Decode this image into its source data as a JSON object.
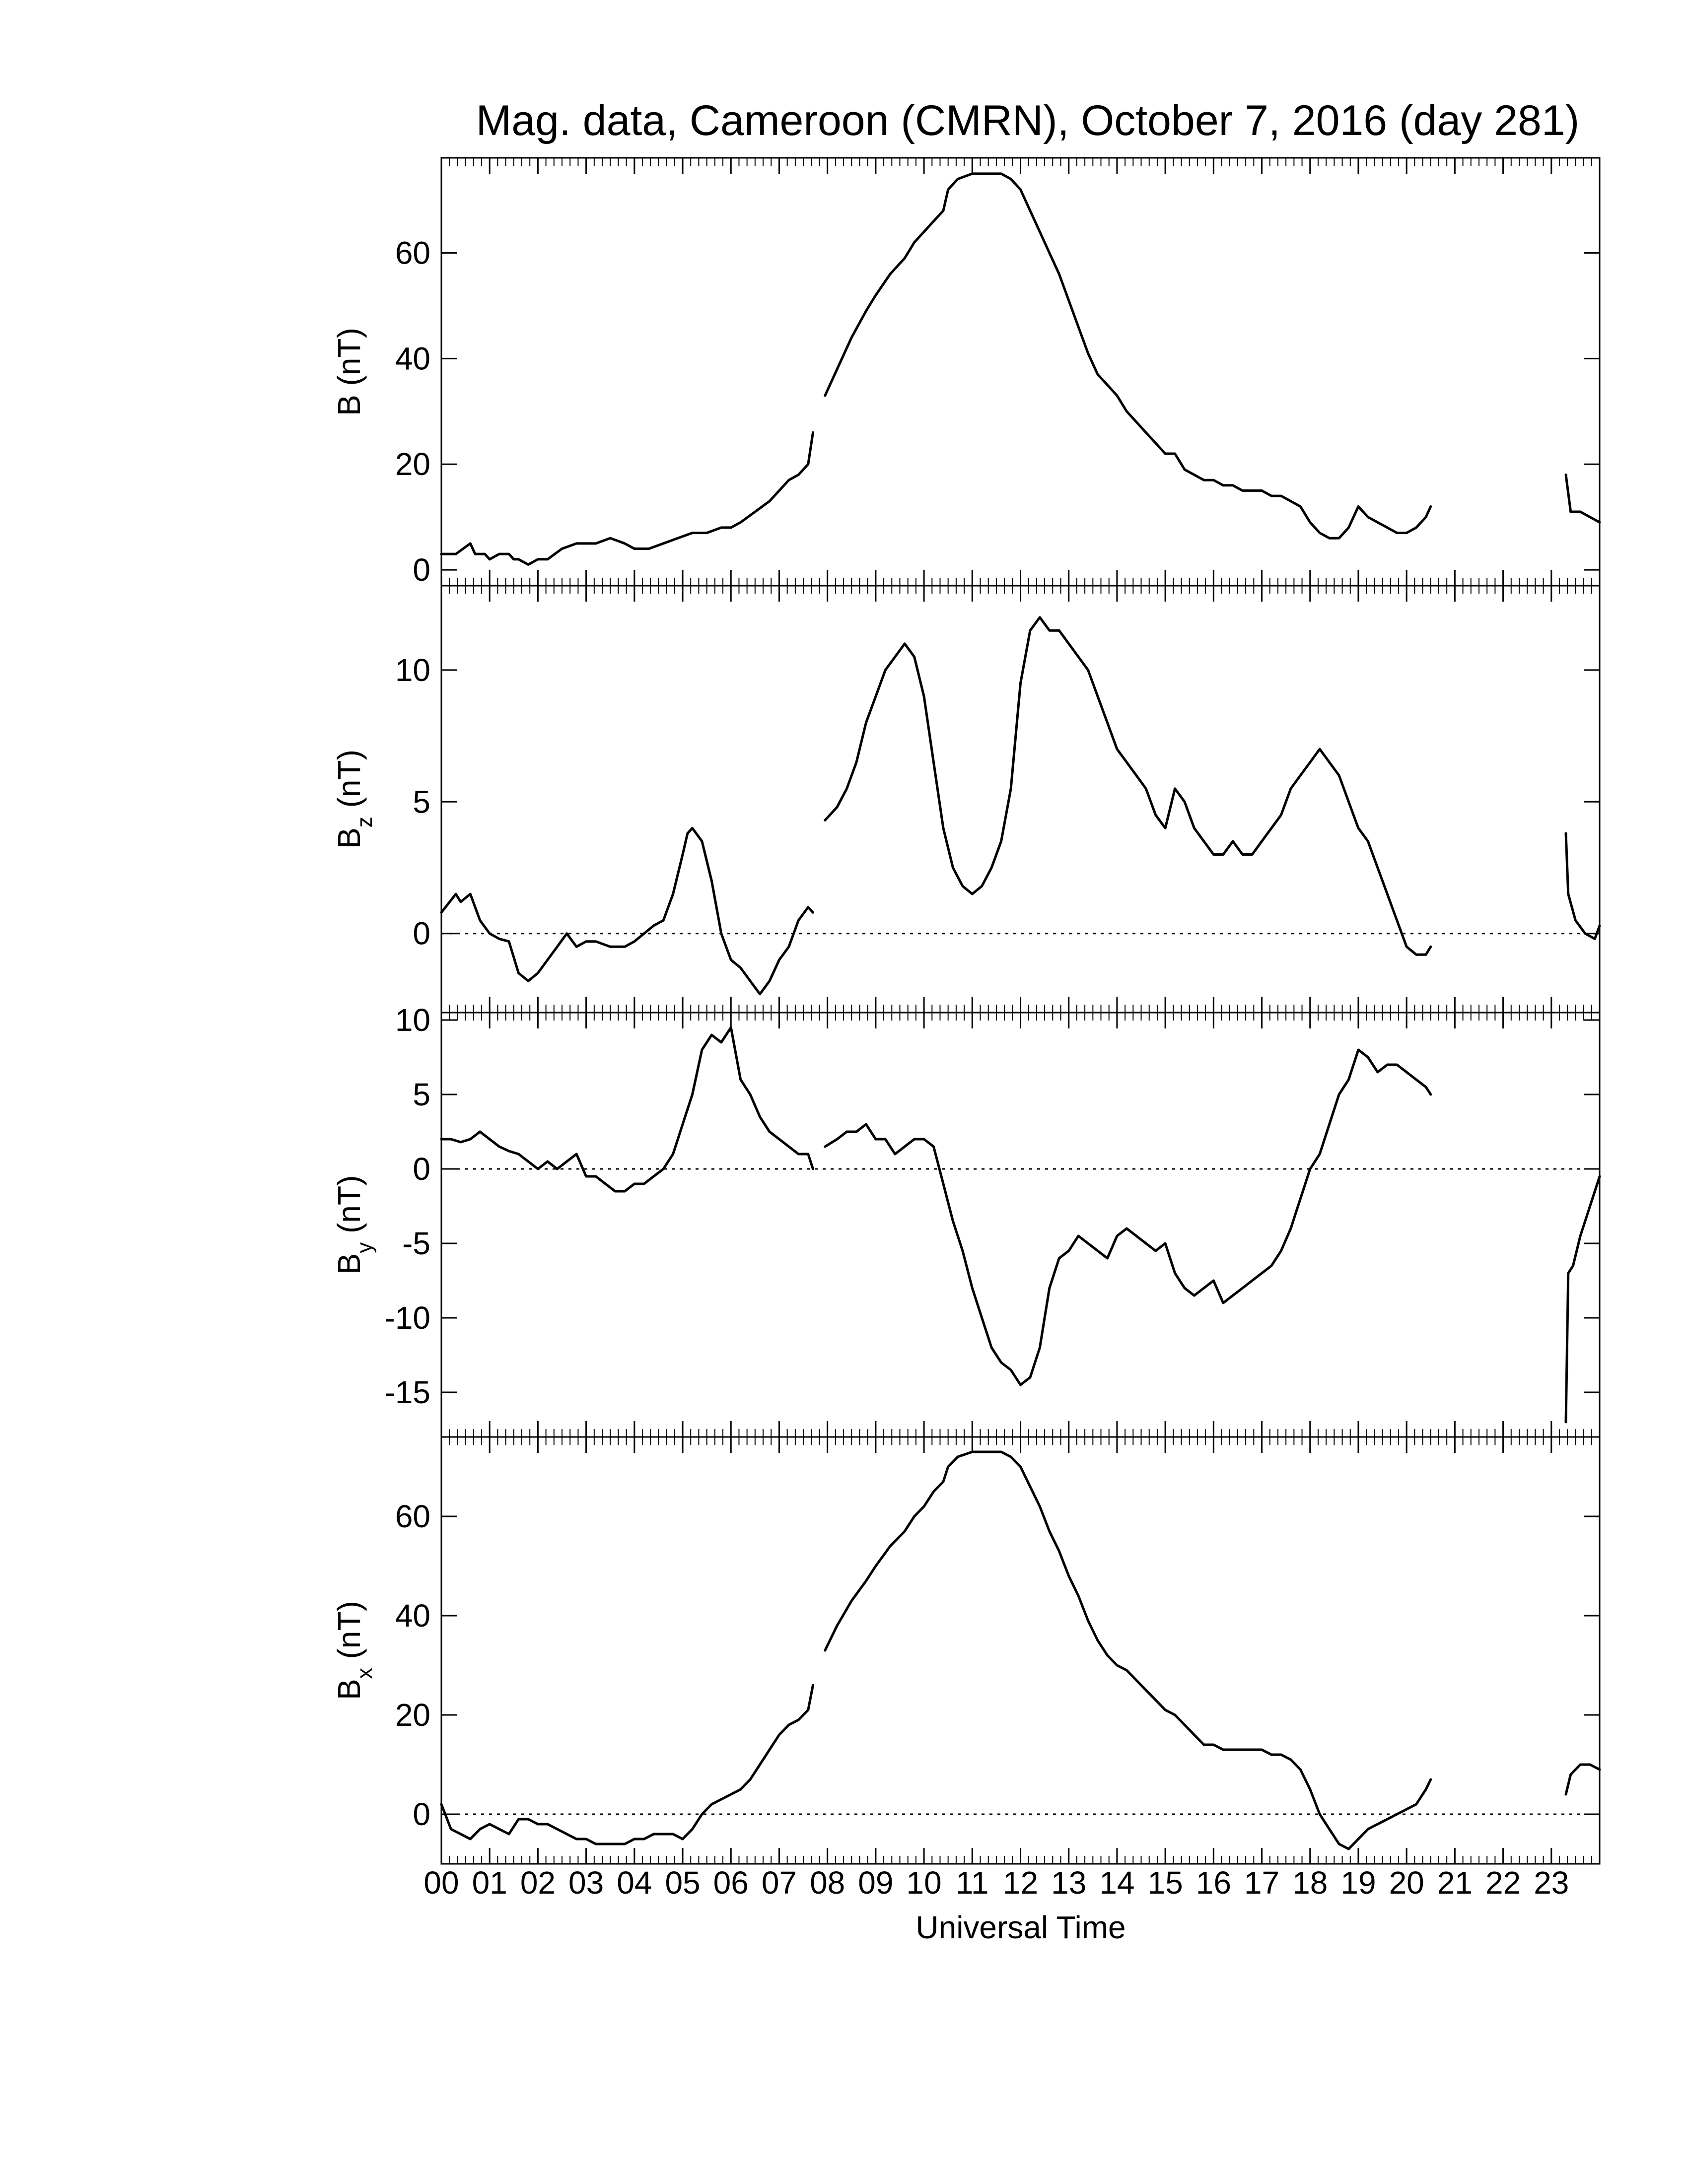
{
  "chart_data": {
    "type": "line",
    "title": "Mag. data, Cameroon (CMRN), October 7, 2016 (day 281)",
    "xlabel": "Universal Time",
    "xlim": [
      0,
      24
    ],
    "x_tick_labels": [
      "00",
      "01",
      "02",
      "03",
      "04",
      "05",
      "06",
      "07",
      "08",
      "09",
      "10",
      "11",
      "12",
      "13",
      "14",
      "15",
      "16",
      "17",
      "18",
      "19",
      "20",
      "21",
      "22",
      "23"
    ],
    "line_color": "#000000",
    "panels": [
      {
        "id": "B",
        "ylabel_main": "B",
        "ylabel_sub": "",
        "ylabel_unit": " (nT)",
        "ylim": [
          -3,
          78
        ],
        "yticks": [
          0,
          20,
          40,
          60
        ],
        "zero_line": false,
        "segments": [
          {
            "x": [
              0.0,
              0.3,
              0.6,
              0.7,
              0.9,
              1.0,
              1.2,
              1.4,
              1.5,
              1.6,
              1.8,
              2.0,
              2.2,
              2.5,
              2.8,
              3.0,
              3.2,
              3.5,
              3.8,
              4.0,
              4.3,
              4.6,
              4.9,
              5.2,
              5.5,
              5.8,
              6.0,
              6.2,
              6.5,
              6.8,
              7.0,
              7.2,
              7.4,
              7.6,
              7.7
            ],
            "y": [
              3,
              3,
              5,
              3,
              3,
              2,
              3,
              3,
              2,
              2,
              1,
              2,
              2,
              4,
              5,
              5,
              5,
              6,
              5,
              4,
              4,
              5,
              6,
              7,
              7,
              8,
              8,
              9,
              11,
              13,
              15,
              17,
              18,
              20,
              26
            ]
          },
          {
            "x": [
              7.95,
              8.2,
              8.5,
              8.8,
              9.0,
              9.3,
              9.6,
              9.8,
              10.0,
              10.2,
              10.4,
              10.5,
              10.7,
              11.0,
              11.3,
              11.6,
              11.8,
              12.0,
              12.2,
              12.4,
              12.6,
              12.8,
              13.0,
              13.2,
              13.4,
              13.6,
              13.8,
              14.0,
              14.2,
              14.4,
              14.6,
              14.8,
              15.0,
              15.2,
              15.4,
              15.6,
              15.8,
              16.0,
              16.2,
              16.4,
              16.6,
              16.8,
              17.0,
              17.2,
              17.4,
              17.6,
              17.8,
              18.0,
              18.2,
              18.4,
              18.6,
              18.8,
              19.0,
              19.2,
              19.4,
              19.6,
              19.8,
              20.0,
              20.2,
              20.4,
              20.5
            ],
            "y": [
              33,
              38,
              44,
              49,
              52,
              56,
              59,
              62,
              64,
              66,
              68,
              72,
              74,
              75,
              75,
              75,
              74,
              72,
              68,
              64,
              60,
              56,
              51,
              46,
              41,
              37,
              35,
              33,
              30,
              28,
              26,
              24,
              22,
              22,
              19,
              18,
              17,
              17,
              16,
              16,
              15,
              15,
              15,
              14,
              14,
              13,
              12,
              9,
              7,
              6,
              6,
              8,
              12,
              10,
              9,
              8,
              7,
              7,
              8,
              10,
              12
            ]
          },
          {
            "x": [
              23.3,
              23.4,
              23.6,
              23.8,
              24.0
            ],
            "y": [
              18,
              11,
              11,
              10,
              9
            ]
          }
        ]
      },
      {
        "id": "Bz",
        "ylabel_main": "B",
        "ylabel_sub": "z",
        "ylabel_unit": " (nT)",
        "ylim": [
          -3,
          13.2
        ],
        "yticks": [
          0,
          5,
          10
        ],
        "zero_line": true,
        "segments": [
          {
            "x": [
              0.0,
              0.3,
              0.4,
              0.6,
              0.8,
              1.0,
              1.2,
              1.4,
              1.6,
              1.8,
              2.0,
              2.2,
              2.4,
              2.6,
              2.8,
              3.0,
              3.2,
              3.5,
              3.8,
              4.0,
              4.2,
              4.4,
              4.6,
              4.8,
              5.0,
              5.1,
              5.2,
              5.4,
              5.6,
              5.8,
              6.0,
              6.2,
              6.4,
              6.6,
              6.8,
              7.0,
              7.2,
              7.4,
              7.6,
              7.7
            ],
            "y": [
              0.8,
              1.5,
              1.2,
              1.5,
              0.5,
              0.0,
              -0.2,
              -0.3,
              -1.5,
              -1.8,
              -1.5,
              -1.0,
              -0.5,
              0.0,
              -0.5,
              -0.3,
              -0.3,
              -0.5,
              -0.5,
              -0.3,
              0.0,
              0.3,
              0.5,
              1.5,
              3.0,
              3.8,
              4.0,
              3.5,
              2.0,
              0.0,
              -1.0,
              -1.3,
              -1.8,
              -2.3,
              -1.8,
              -1.0,
              -0.5,
              0.5,
              1.0,
              0.8
            ]
          },
          {
            "x": [
              7.95,
              8.2,
              8.4,
              8.6,
              8.8,
              9.0,
              9.2,
              9.4,
              9.6,
              9.8,
              10.0,
              10.2,
              10.4,
              10.6,
              10.8,
              11.0,
              11.2,
              11.4,
              11.6,
              11.8,
              11.9,
              12.0,
              12.2,
              12.4,
              12.6,
              12.8,
              13.0,
              13.2,
              13.4,
              13.6,
              13.8,
              14.0,
              14.2,
              14.4,
              14.6,
              14.8,
              15.0,
              15.2,
              15.4,
              15.6,
              15.8,
              16.0,
              16.2,
              16.4,
              16.6,
              16.8,
              17.0,
              17.2,
              17.4,
              17.6,
              17.8,
              18.0,
              18.2,
              18.4,
              18.6,
              18.8,
              19.0,
              19.2,
              19.4,
              19.6,
              19.8,
              20.0,
              20.2,
              20.4,
              20.5
            ],
            "y": [
              4.3,
              4.8,
              5.5,
              6.5,
              8.0,
              9.0,
              10.0,
              10.5,
              11.0,
              10.5,
              9.0,
              6.5,
              4.0,
              2.5,
              1.8,
              1.5,
              1.8,
              2.5,
              3.5,
              5.5,
              7.5,
              9.5,
              11.5,
              12.0,
              11.5,
              11.5,
              11.0,
              10.5,
              10.0,
              9.0,
              8.0,
              7.0,
              6.5,
              6.0,
              5.5,
              4.5,
              4.0,
              5.5,
              5.0,
              4.0,
              3.5,
              3.0,
              3.0,
              3.5,
              3.0,
              3.0,
              3.5,
              4.0,
              4.5,
              5.5,
              6.0,
              6.5,
              7.0,
              6.5,
              6.0,
              5.0,
              4.0,
              3.5,
              2.5,
              1.5,
              0.5,
              -0.5,
              -0.8,
              -0.8,
              -0.5
            ]
          },
          {
            "x": [
              23.3,
              23.35,
              23.5,
              23.7,
              23.9,
              24.0
            ],
            "y": [
              3.8,
              1.5,
              0.5,
              0.0,
              -0.2,
              0.3
            ]
          }
        ]
      },
      {
        "id": "By",
        "ylabel_main": "B",
        "ylabel_sub": "y",
        "ylabel_unit": " (nT)",
        "ylim": [
          -18,
          10.5
        ],
        "yticks": [
          -15,
          -10,
          -5,
          0,
          5,
          10
        ],
        "zero_line": true,
        "segments": [
          {
            "x": [
              0.0,
              0.2,
              0.4,
              0.6,
              0.8,
              1.0,
              1.2,
              1.4,
              1.6,
              1.8,
              2.0,
              2.2,
              2.4,
              2.6,
              2.8,
              3.0,
              3.2,
              3.4,
              3.6,
              3.8,
              4.0,
              4.2,
              4.4,
              4.6,
              4.8,
              5.0,
              5.2,
              5.4,
              5.6,
              5.8,
              6.0,
              6.2,
              6.4,
              6.6,
              6.8,
              7.0,
              7.2,
              7.4,
              7.6,
              7.7
            ],
            "y": [
              2.0,
              2.0,
              1.8,
              2.0,
              2.5,
              2.0,
              1.5,
              1.2,
              1.0,
              0.5,
              0.0,
              0.5,
              0.0,
              0.5,
              1.0,
              -0.5,
              -0.5,
              -1.0,
              -1.5,
              -1.5,
              -1.0,
              -1.0,
              -0.5,
              0.0,
              1.0,
              3.0,
              5.0,
              8.0,
              9.0,
              8.5,
              9.5,
              6.0,
              5.0,
              3.5,
              2.5,
              2.0,
              1.5,
              1.0,
              1.0,
              0.0
            ]
          },
          {
            "x": [
              7.95,
              8.2,
              8.4,
              8.6,
              8.8,
              9.0,
              9.2,
              9.4,
              9.6,
              9.8,
              10.0,
              10.2,
              10.4,
              10.6,
              10.8,
              11.0,
              11.2,
              11.4,
              11.6,
              11.8,
              12.0,
              12.2,
              12.4,
              12.6,
              12.8,
              13.0,
              13.2,
              13.4,
              13.6,
              13.8,
              14.0,
              14.2,
              14.4,
              14.6,
              14.8,
              15.0,
              15.2,
              15.4,
              15.6,
              15.8,
              16.0,
              16.2,
              16.4,
              16.6,
              16.8,
              17.0,
              17.2,
              17.4,
              17.6,
              17.8,
              18.0,
              18.2,
              18.4,
              18.6,
              18.8,
              19.0,
              19.2,
              19.4,
              19.6,
              19.8,
              20.0,
              20.2,
              20.4,
              20.5
            ],
            "y": [
              1.5,
              2.0,
              2.5,
              2.5,
              3.0,
              2.0,
              2.0,
              1.0,
              1.5,
              2.0,
              2.0,
              1.5,
              -1.0,
              -3.5,
              -5.5,
              -8.0,
              -10.0,
              -12.0,
              -13.0,
              -13.5,
              -14.5,
              -14.0,
              -12.0,
              -8.0,
              -6.0,
              -5.5,
              -4.5,
              -5.0,
              -5.5,
              -6.0,
              -4.5,
              -4.0,
              -4.5,
              -5.0,
              -5.5,
              -5.0,
              -7.0,
              -8.0,
              -8.5,
              -8.0,
              -7.5,
              -9.0,
              -8.5,
              -8.0,
              -7.5,
              -7.0,
              -6.5,
              -5.5,
              -4.0,
              -2.0,
              0.0,
              1.0,
              3.0,
              5.0,
              6.0,
              8.0,
              7.5,
              6.5,
              7.0,
              7.0,
              6.5,
              6.0,
              5.5,
              5.0
            ]
          },
          {
            "x": [
              23.3,
              23.35,
              23.45,
              23.6,
              23.8,
              24.0
            ],
            "y": [
              -17.0,
              -7.0,
              -6.5,
              -4.5,
              -2.5,
              -0.5
            ]
          }
        ]
      },
      {
        "id": "Bx",
        "ylabel_main": "B",
        "ylabel_sub": "x",
        "ylabel_unit": " (nT)",
        "ylim": [
          -10,
          76
        ],
        "yticks": [
          0,
          20,
          40,
          60
        ],
        "zero_line": true,
        "segments": [
          {
            "x": [
              0.0,
              0.2,
              0.4,
              0.6,
              0.8,
              1.0,
              1.2,
              1.4,
              1.6,
              1.8,
              2.0,
              2.2,
              2.4,
              2.6,
              2.8,
              3.0,
              3.2,
              3.4,
              3.6,
              3.8,
              4.0,
              4.2,
              4.4,
              4.6,
              4.8,
              5.0,
              5.2,
              5.4,
              5.6,
              5.8,
              6.0,
              6.2,
              6.4,
              6.6,
              6.8,
              7.0,
              7.2,
              7.4,
              7.6,
              7.7
            ],
            "y": [
              2,
              -3,
              -4,
              -5,
              -3,
              -2,
              -3,
              -4,
              -1,
              -1,
              -2,
              -2,
              -3,
              -4,
              -5,
              -5,
              -6,
              -6,
              -6,
              -6,
              -5,
              -5,
              -4,
              -4,
              -4,
              -5,
              -3,
              0,
              2,
              3,
              4,
              5,
              7,
              10,
              13,
              16,
              18,
              19,
              21,
              26
            ]
          },
          {
            "x": [
              7.95,
              8.2,
              8.5,
              8.8,
              9.0,
              9.3,
              9.6,
              9.8,
              10.0,
              10.2,
              10.4,
              10.5,
              10.7,
              11.0,
              11.3,
              11.6,
              11.8,
              12.0,
              12.2,
              12.4,
              12.6,
              12.8,
              13.0,
              13.2,
              13.4,
              13.6,
              13.8,
              14.0,
              14.2,
              14.4,
              14.6,
              14.8,
              15.0,
              15.2,
              15.4,
              15.6,
              15.8,
              16.0,
              16.2,
              16.4,
              16.6,
              16.8,
              17.0,
              17.2,
              17.4,
              17.6,
              17.8,
              18.0,
              18.2,
              18.4,
              18.6,
              18.8,
              19.0,
              19.2,
              19.4,
              19.6,
              19.8,
              20.0,
              20.2,
              20.4,
              20.5
            ],
            "y": [
              33,
              38,
              43,
              47,
              50,
              54,
              57,
              60,
              62,
              65,
              67,
              70,
              72,
              73,
              73,
              73,
              72,
              70,
              66,
              62,
              57,
              53,
              48,
              44,
              39,
              35,
              32,
              30,
              29,
              27,
              25,
              23,
              21,
              20,
              18,
              16,
              14,
              14,
              13,
              13,
              13,
              13,
              13,
              12,
              12,
              11,
              9,
              5,
              0,
              -3,
              -6,
              -7,
              -5,
              -3,
              -2,
              -1,
              0,
              1,
              2,
              5,
              7
            ]
          },
          {
            "x": [
              23.3,
              23.4,
              23.6,
              23.8,
              24.0
            ],
            "y": [
              4,
              8,
              10,
              10,
              9
            ]
          }
        ]
      }
    ]
  }
}
